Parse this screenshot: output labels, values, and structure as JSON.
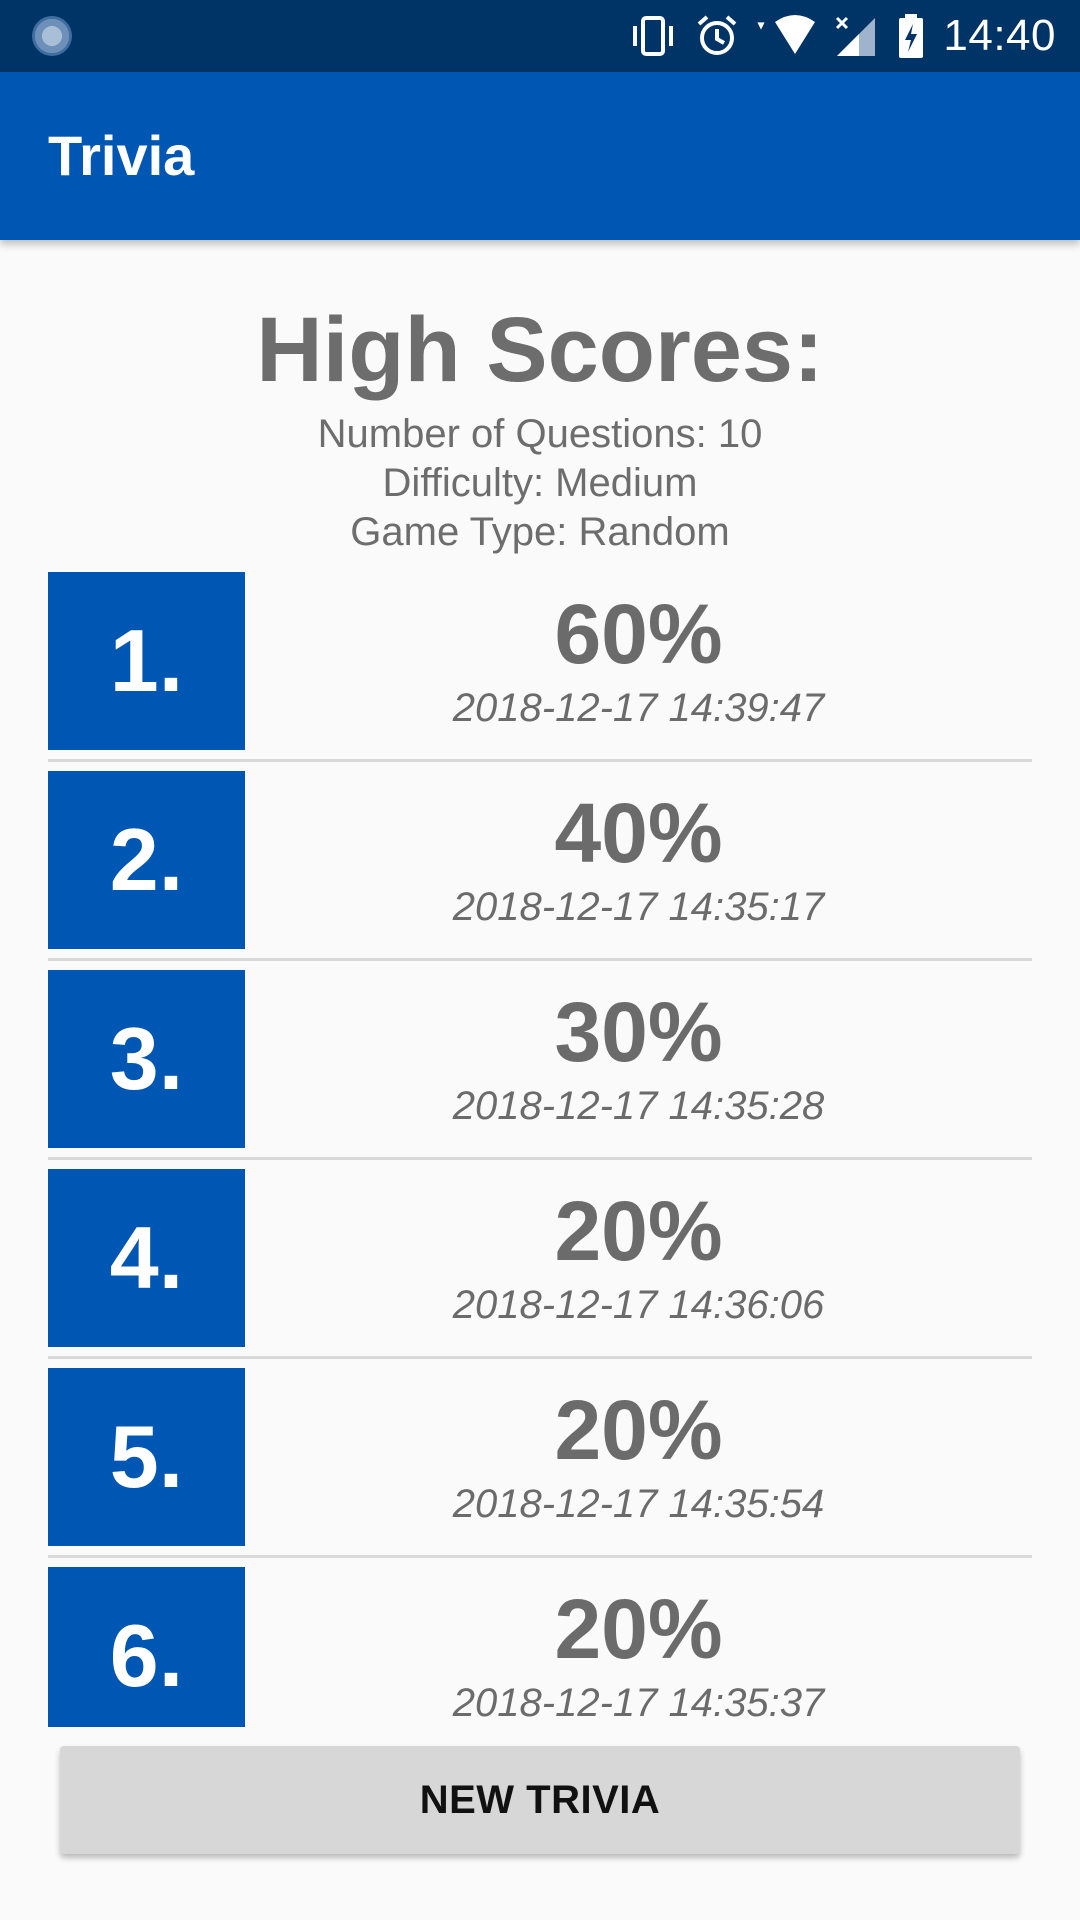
{
  "status_bar": {
    "time": "14:40",
    "icons": [
      "sync-icon",
      "vibrate-icon",
      "alarm-icon",
      "wifi-icon",
      "signal-icon",
      "battery-charging-icon"
    ]
  },
  "app_bar": {
    "title": "Trivia"
  },
  "header": {
    "title": "High Scores:",
    "questions": "Number of Questions: 10",
    "difficulty": "Difficulty: Medium",
    "game_type": "Game Type: Random"
  },
  "scores": [
    {
      "rank": "1.",
      "score": "60%",
      "date": "2018-12-17 14:39:47"
    },
    {
      "rank": "2.",
      "score": "40%",
      "date": "2018-12-17 14:35:17"
    },
    {
      "rank": "3.",
      "score": "30%",
      "date": "2018-12-17 14:35:28"
    },
    {
      "rank": "4.",
      "score": "20%",
      "date": "2018-12-17 14:36:06"
    },
    {
      "rank": "5.",
      "score": "20%",
      "date": "2018-12-17 14:35:54"
    },
    {
      "rank": "6.",
      "score": "20%",
      "date": "2018-12-17 14:35:37"
    }
  ],
  "actions": {
    "new_trivia": "NEW TRIVIA"
  },
  "colors": {
    "primary": "#0057b3",
    "status_bar": "#003366",
    "text_gray": "#6d6d6d"
  }
}
